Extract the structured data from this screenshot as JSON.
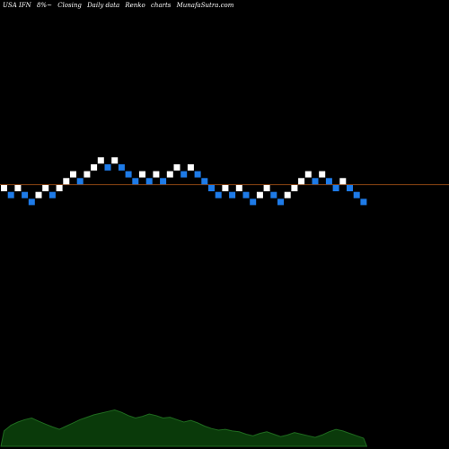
{
  "header": {
    "ticker": "USA IFN",
    "change": "8%~",
    "label_closing": "Closing",
    "label_daily": "Daily data",
    "label_renko": "Renko",
    "label_charts": "charts",
    "site": "MunafaSutra.com"
  },
  "colors": {
    "up": "#ffffff",
    "down": "#1e7be8",
    "baseline": "#8b4513",
    "volume_fill": "#0a3a0a",
    "volume_line": "#1f6a1f"
  },
  "chart_data": {
    "type": "renko",
    "bricks": [
      {
        "level": 0,
        "dir": "up"
      },
      {
        "level": -1,
        "dir": "down"
      },
      {
        "level": 0,
        "dir": "up"
      },
      {
        "level": -1,
        "dir": "down"
      },
      {
        "level": -2,
        "dir": "down"
      },
      {
        "level": -1,
        "dir": "up"
      },
      {
        "level": 0,
        "dir": "up"
      },
      {
        "level": -1,
        "dir": "down"
      },
      {
        "level": 0,
        "dir": "up"
      },
      {
        "level": 1,
        "dir": "up"
      },
      {
        "level": 2,
        "dir": "up"
      },
      {
        "level": 1,
        "dir": "down"
      },
      {
        "level": 2,
        "dir": "up"
      },
      {
        "level": 3,
        "dir": "up"
      },
      {
        "level": 4,
        "dir": "up"
      },
      {
        "level": 3,
        "dir": "down"
      },
      {
        "level": 4,
        "dir": "up"
      },
      {
        "level": 3,
        "dir": "down"
      },
      {
        "level": 2,
        "dir": "down"
      },
      {
        "level": 1,
        "dir": "down"
      },
      {
        "level": 2,
        "dir": "up"
      },
      {
        "level": 1,
        "dir": "down"
      },
      {
        "level": 2,
        "dir": "up"
      },
      {
        "level": 1,
        "dir": "down"
      },
      {
        "level": 2,
        "dir": "up"
      },
      {
        "level": 3,
        "dir": "up"
      },
      {
        "level": 2,
        "dir": "down"
      },
      {
        "level": 3,
        "dir": "up"
      },
      {
        "level": 2,
        "dir": "down"
      },
      {
        "level": 1,
        "dir": "down"
      },
      {
        "level": 0,
        "dir": "down"
      },
      {
        "level": -1,
        "dir": "down"
      },
      {
        "level": 0,
        "dir": "up"
      },
      {
        "level": -1,
        "dir": "down"
      },
      {
        "level": 0,
        "dir": "up"
      },
      {
        "level": -1,
        "dir": "down"
      },
      {
        "level": -2,
        "dir": "down"
      },
      {
        "level": -1,
        "dir": "up"
      },
      {
        "level": 0,
        "dir": "up"
      },
      {
        "level": -1,
        "dir": "down"
      },
      {
        "level": -2,
        "dir": "down"
      },
      {
        "level": -1,
        "dir": "up"
      },
      {
        "level": 0,
        "dir": "up"
      },
      {
        "level": 1,
        "dir": "up"
      },
      {
        "level": 2,
        "dir": "up"
      },
      {
        "level": 1,
        "dir": "down"
      },
      {
        "level": 2,
        "dir": "up"
      },
      {
        "level": 1,
        "dir": "down"
      },
      {
        "level": 0,
        "dir": "down"
      },
      {
        "level": 1,
        "dir": "up"
      },
      {
        "level": 0,
        "dir": "down"
      },
      {
        "level": -1,
        "dir": "down"
      },
      {
        "level": -2,
        "dir": "down"
      }
    ],
    "baseline_level": 0.5,
    "volume": [
      0.38,
      0.52,
      0.6,
      0.66,
      0.7,
      0.62,
      0.55,
      0.48,
      0.42,
      0.5,
      0.58,
      0.66,
      0.72,
      0.78,
      0.82,
      0.86,
      0.9,
      0.84,
      0.76,
      0.7,
      0.74,
      0.8,
      0.76,
      0.7,
      0.72,
      0.66,
      0.6,
      0.64,
      0.58,
      0.5,
      0.44,
      0.4,
      0.42,
      0.38,
      0.36,
      0.3,
      0.26,
      0.32,
      0.36,
      0.3,
      0.24,
      0.28,
      0.34,
      0.3,
      0.26,
      0.22,
      0.28,
      0.36,
      0.42,
      0.38,
      0.32,
      0.26,
      0.2
    ]
  }
}
